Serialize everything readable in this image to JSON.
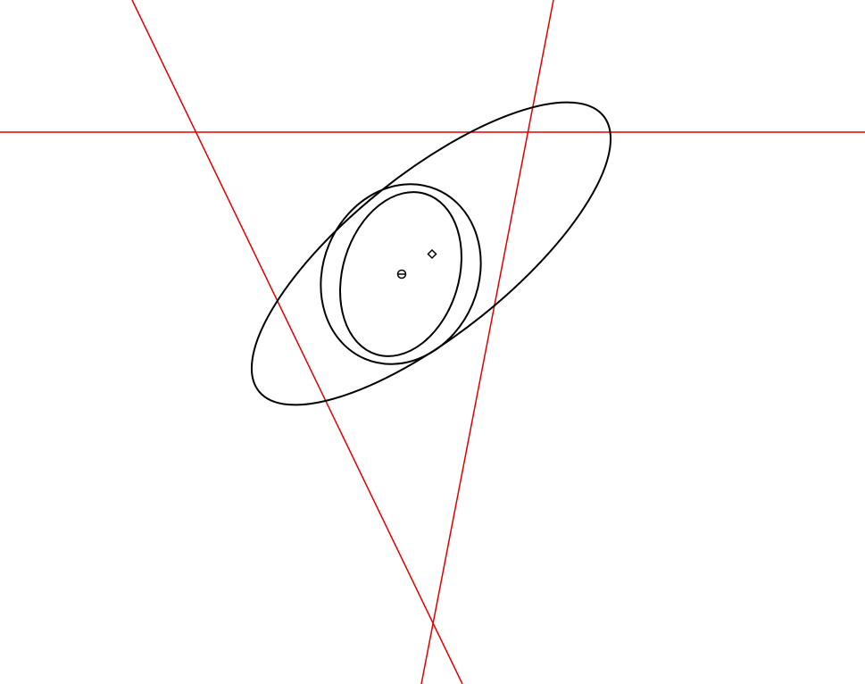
{
  "diagram": {
    "background_color": "#ffffff",
    "line_color": "#e00000",
    "curve_color": "#000000",
    "lines": [
      {
        "id": "horizontal-line"
      },
      {
        "id": "steep-line"
      },
      {
        "id": "descending-line"
      }
    ],
    "ellipses": [
      {
        "id": "outer-ellipse"
      },
      {
        "id": "middle-ellipse"
      },
      {
        "id": "inner-ellipse"
      }
    ],
    "points": [
      {
        "id": "circle-point",
        "marker": "circle"
      },
      {
        "id": "diamond-point",
        "marker": "diamond"
      }
    ]
  }
}
